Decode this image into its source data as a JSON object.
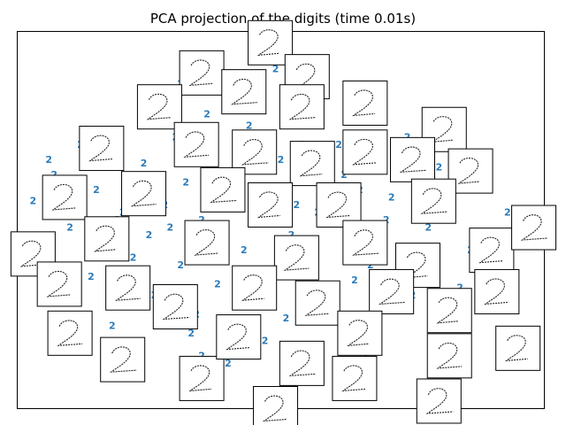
{
  "chart_data": {
    "type": "scatter",
    "title": "PCA projection of the digits (time 0.01s)",
    "xlabel": "",
    "ylabel": "",
    "xlim": [
      0,
      1
    ],
    "ylim": [
      0,
      1
    ],
    "axes_visible": false,
    "grid": false,
    "marker_text": "2",
    "marker_color": "#2b7bba",
    "frame_color": "#000000",
    "series": [
      {
        "x": [
          0.03,
          0.07,
          0.1,
          0.12,
          0.14,
          0.15,
          0.17,
          0.2,
          0.22,
          0.24,
          0.26,
          0.27,
          0.29,
          0.3,
          0.31,
          0.32,
          0.34,
          0.35,
          0.36,
          0.37,
          0.38,
          0.4,
          0.41,
          0.43,
          0.44,
          0.45,
          0.47,
          0.48,
          0.49,
          0.5,
          0.52,
          0.53,
          0.55,
          0.56,
          0.58,
          0.6,
          0.61,
          0.63,
          0.65,
          0.67,
          0.7,
          0.72,
          0.75,
          0.78,
          0.82,
          0.86,
          0.9,
          0.93,
          0.97,
          0.05,
          0.09,
          0.11,
          0.16,
          0.18,
          0.19,
          0.21,
          0.23,
          0.25,
          0.28,
          0.33,
          0.36,
          0.39,
          0.42,
          0.46,
          0.51,
          0.54,
          0.57,
          0.59,
          0.62,
          0.64,
          0.66,
          0.68,
          0.71,
          0.74,
          0.77,
          0.8,
          0.84,
          0.88,
          0.91,
          0.95,
          0.06,
          0.13,
          0.24,
          0.31,
          0.44,
          0.49,
          0.58,
          0.69,
          0.73,
          0.79,
          0.83,
          0.87,
          0.92,
          0.35,
          0.4,
          0.47,
          0.52,
          0.55,
          0.62,
          0.66
        ],
        "y": [
          0.55,
          0.62,
          0.48,
          0.7,
          0.35,
          0.58,
          0.45,
          0.52,
          0.4,
          0.65,
          0.3,
          0.57,
          0.48,
          0.72,
          0.38,
          0.6,
          0.25,
          0.5,
          0.44,
          0.68,
          0.33,
          0.55,
          0.62,
          0.42,
          0.75,
          0.29,
          0.58,
          0.5,
          0.36,
          0.66,
          0.46,
          0.54,
          0.4,
          0.6,
          0.32,
          0.52,
          0.7,
          0.44,
          0.58,
          0.38,
          0.5,
          0.62,
          0.3,
          0.48,
          0.56,
          0.42,
          0.36,
          0.52,
          0.45,
          0.4,
          0.3,
          0.58,
          0.64,
          0.22,
          0.5,
          0.36,
          0.28,
          0.46,
          0.54,
          0.2,
          0.78,
          0.48,
          0.3,
          0.64,
          0.24,
          0.7,
          0.52,
          0.26,
          0.62,
          0.34,
          0.68,
          0.28,
          0.56,
          0.72,
          0.4,
          0.64,
          0.32,
          0.6,
          0.38,
          0.48,
          0.66,
          0.74,
          0.82,
          0.86,
          0.8,
          0.9,
          0.84,
          0.76,
          0.7,
          0.78,
          0.72,
          0.64,
          0.3,
          0.14,
          0.12,
          0.18,
          0.1,
          0.16,
          0.2,
          0.14
        ]
      }
    ],
    "images": [
      {
        "x": 0.48,
        "y": 0.97
      },
      {
        "x": 0.35,
        "y": 0.89
      },
      {
        "x": 0.55,
        "y": 0.88
      },
      {
        "x": 0.43,
        "y": 0.84
      },
      {
        "x": 0.66,
        "y": 0.81
      },
      {
        "x": 0.27,
        "y": 0.8
      },
      {
        "x": 0.54,
        "y": 0.8
      },
      {
        "x": 0.81,
        "y": 0.74
      },
      {
        "x": 0.16,
        "y": 0.69
      },
      {
        "x": 0.34,
        "y": 0.7
      },
      {
        "x": 0.45,
        "y": 0.68
      },
      {
        "x": 0.56,
        "y": 0.65
      },
      {
        "x": 0.66,
        "y": 0.68
      },
      {
        "x": 0.75,
        "y": 0.66
      },
      {
        "x": 0.86,
        "y": 0.63
      },
      {
        "x": 0.09,
        "y": 0.56
      },
      {
        "x": 0.24,
        "y": 0.57
      },
      {
        "x": 0.39,
        "y": 0.58
      },
      {
        "x": 0.48,
        "y": 0.54
      },
      {
        "x": 0.61,
        "y": 0.54
      },
      {
        "x": 0.79,
        "y": 0.55
      },
      {
        "x": 0.17,
        "y": 0.45
      },
      {
        "x": 0.36,
        "y": 0.44
      },
      {
        "x": 0.53,
        "y": 0.4
      },
      {
        "x": 0.66,
        "y": 0.44
      },
      {
        "x": 0.76,
        "y": 0.38
      },
      {
        "x": 0.9,
        "y": 0.42
      },
      {
        "x": 0.98,
        "y": 0.48
      },
      {
        "x": 0.03,
        "y": 0.41
      },
      {
        "x": 0.08,
        "y": 0.33
      },
      {
        "x": 0.21,
        "y": 0.32
      },
      {
        "x": 0.3,
        "y": 0.27
      },
      {
        "x": 0.45,
        "y": 0.32
      },
      {
        "x": 0.57,
        "y": 0.28
      },
      {
        "x": 0.71,
        "y": 0.31
      },
      {
        "x": 0.82,
        "y": 0.26
      },
      {
        "x": 0.91,
        "y": 0.31
      },
      {
        "x": 0.1,
        "y": 0.2
      },
      {
        "x": 0.2,
        "y": 0.13
      },
      {
        "x": 0.35,
        "y": 0.08
      },
      {
        "x": 0.42,
        "y": 0.19
      },
      {
        "x": 0.54,
        "y": 0.12
      },
      {
        "x": 0.65,
        "y": 0.2
      },
      {
        "x": 0.64,
        "y": 0.08
      },
      {
        "x": 0.82,
        "y": 0.14
      },
      {
        "x": 0.8,
        "y": 0.02
      },
      {
        "x": 0.95,
        "y": 0.16
      },
      {
        "x": 0.49,
        "y": 0.0
      }
    ]
  }
}
